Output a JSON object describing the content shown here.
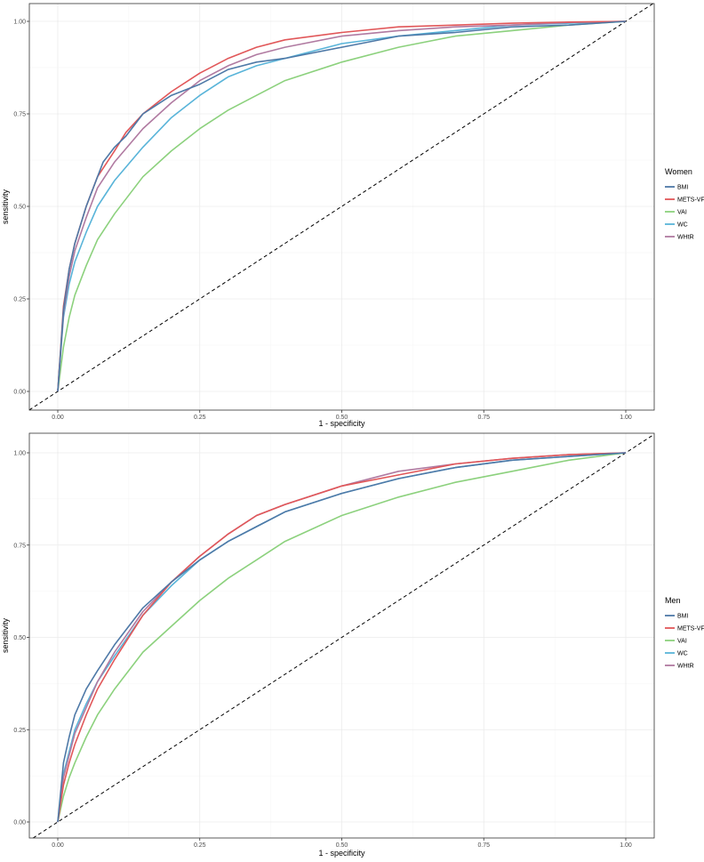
{
  "colors": {
    "BMI": "#4E79A7",
    "METS-VF": "#E15759",
    "VAI": "#8CD17D",
    "WC": "#59B4D9",
    "WHtR": "#B07AA1"
  },
  "chart_data": [
    {
      "type": "line",
      "xlabel": "1 - specificity",
      "ylabel": "sensitivity",
      "xlim": [
        0,
        1
      ],
      "ylim": [
        0,
        1
      ],
      "x_ticks": [
        "0.00",
        "0.25",
        "0.50",
        "0.75",
        "1.00"
      ],
      "y_ticks": [
        "0.00",
        "0.25",
        "0.50",
        "0.75",
        "1.00"
      ],
      "grid": true,
      "legend_title": "Women",
      "legend_position": "right",
      "reference_line": "dashed diagonal",
      "series": [
        {
          "name": "BMI",
          "x": [
            0,
            0.01,
            0.02,
            0.03,
            0.05,
            0.07,
            0.08,
            0.1,
            0.12,
            0.15,
            0.2,
            0.25,
            0.3,
            0.35,
            0.4,
            0.5,
            0.6,
            0.7,
            0.8,
            0.9,
            1.0
          ],
          "y": [
            0,
            0.22,
            0.33,
            0.4,
            0.5,
            0.58,
            0.62,
            0.66,
            0.69,
            0.75,
            0.8,
            0.83,
            0.87,
            0.89,
            0.9,
            0.93,
            0.96,
            0.97,
            0.985,
            0.99,
            1.0
          ]
        },
        {
          "name": "METS-VF",
          "x": [
            0,
            0.01,
            0.02,
            0.03,
            0.05,
            0.07,
            0.1,
            0.12,
            0.15,
            0.2,
            0.25,
            0.3,
            0.35,
            0.4,
            0.5,
            0.6,
            0.7,
            0.8,
            0.9,
            1.0
          ],
          "y": [
            0,
            0.23,
            0.33,
            0.4,
            0.5,
            0.58,
            0.65,
            0.7,
            0.75,
            0.81,
            0.86,
            0.9,
            0.93,
            0.95,
            0.97,
            0.985,
            0.99,
            0.995,
            0.998,
            1.0
          ]
        },
        {
          "name": "VAI",
          "x": [
            0,
            0.01,
            0.02,
            0.03,
            0.05,
            0.07,
            0.1,
            0.15,
            0.2,
            0.25,
            0.3,
            0.35,
            0.4,
            0.5,
            0.6,
            0.7,
            0.8,
            0.9,
            1.0
          ],
          "y": [
            0,
            0.12,
            0.2,
            0.26,
            0.34,
            0.41,
            0.48,
            0.58,
            0.65,
            0.71,
            0.76,
            0.8,
            0.84,
            0.89,
            0.93,
            0.96,
            0.975,
            0.99,
            1.0
          ]
        },
        {
          "name": "WC",
          "x": [
            0,
            0.01,
            0.02,
            0.03,
            0.05,
            0.07,
            0.1,
            0.15,
            0.2,
            0.25,
            0.3,
            0.35,
            0.4,
            0.5,
            0.6,
            0.7,
            0.8,
            0.9,
            1.0
          ],
          "y": [
            0,
            0.2,
            0.29,
            0.35,
            0.43,
            0.5,
            0.57,
            0.66,
            0.74,
            0.8,
            0.85,
            0.88,
            0.9,
            0.94,
            0.96,
            0.975,
            0.99,
            0.995,
            1.0
          ]
        },
        {
          "name": "WHtR",
          "x": [
            0,
            0.01,
            0.02,
            0.03,
            0.05,
            0.07,
            0.1,
            0.15,
            0.2,
            0.25,
            0.3,
            0.35,
            0.4,
            0.5,
            0.6,
            0.7,
            0.8,
            0.9,
            1.0
          ],
          "y": [
            0,
            0.21,
            0.31,
            0.38,
            0.47,
            0.55,
            0.62,
            0.71,
            0.78,
            0.84,
            0.88,
            0.91,
            0.93,
            0.96,
            0.975,
            0.985,
            0.99,
            0.997,
            1.0
          ]
        }
      ]
    },
    {
      "type": "line",
      "xlabel": "1 - specificity",
      "ylabel": "sensitivity",
      "xlim": [
        0,
        1
      ],
      "ylim": [
        0,
        1
      ],
      "x_ticks": [
        "0.00",
        "0.25",
        "0.50",
        "0.75",
        "1.00"
      ],
      "y_ticks": [
        "0.00",
        "0.25",
        "0.50",
        "0.75",
        "1.00"
      ],
      "grid": true,
      "legend_title": "Men",
      "legend_position": "right",
      "reference_line": "dashed diagonal",
      "series": [
        {
          "name": "BMI",
          "x": [
            0,
            0.01,
            0.02,
            0.03,
            0.05,
            0.07,
            0.1,
            0.15,
            0.2,
            0.25,
            0.3,
            0.35,
            0.4,
            0.5,
            0.6,
            0.7,
            0.8,
            0.9,
            1.0
          ],
          "y": [
            0,
            0.16,
            0.23,
            0.29,
            0.36,
            0.41,
            0.48,
            0.58,
            0.65,
            0.71,
            0.76,
            0.8,
            0.84,
            0.89,
            0.93,
            0.96,
            0.98,
            0.99,
            1.0
          ]
        },
        {
          "name": "METS-VF",
          "x": [
            0,
            0.01,
            0.02,
            0.03,
            0.05,
            0.07,
            0.1,
            0.15,
            0.2,
            0.25,
            0.3,
            0.35,
            0.4,
            0.5,
            0.6,
            0.7,
            0.8,
            0.9,
            1.0
          ],
          "y": [
            0,
            0.1,
            0.16,
            0.21,
            0.29,
            0.36,
            0.44,
            0.56,
            0.65,
            0.72,
            0.78,
            0.83,
            0.86,
            0.91,
            0.94,
            0.97,
            0.985,
            0.995,
            1.0
          ]
        },
        {
          "name": "VAI",
          "x": [
            0,
            0.01,
            0.02,
            0.03,
            0.05,
            0.07,
            0.1,
            0.15,
            0.2,
            0.25,
            0.3,
            0.35,
            0.4,
            0.5,
            0.6,
            0.7,
            0.8,
            0.9,
            1.0
          ],
          "y": [
            0,
            0.07,
            0.12,
            0.16,
            0.23,
            0.29,
            0.36,
            0.46,
            0.53,
            0.6,
            0.66,
            0.71,
            0.76,
            0.83,
            0.88,
            0.92,
            0.95,
            0.98,
            1.0
          ]
        },
        {
          "name": "WC",
          "x": [
            0,
            0.01,
            0.02,
            0.03,
            0.05,
            0.07,
            0.1,
            0.15,
            0.2,
            0.25,
            0.3,
            0.35,
            0.4,
            0.5,
            0.6,
            0.7,
            0.8,
            0.9,
            1.0
          ],
          "y": [
            0,
            0.13,
            0.19,
            0.25,
            0.32,
            0.38,
            0.45,
            0.56,
            0.64,
            0.71,
            0.76,
            0.8,
            0.84,
            0.89,
            0.93,
            0.96,
            0.98,
            0.99,
            1.0
          ]
        },
        {
          "name": "WHtR",
          "x": [
            0,
            0.01,
            0.02,
            0.03,
            0.05,
            0.07,
            0.1,
            0.15,
            0.2,
            0.25,
            0.3,
            0.35,
            0.4,
            0.5,
            0.6,
            0.7,
            0.8,
            0.9,
            1.0
          ],
          "y": [
            0,
            0.12,
            0.18,
            0.24,
            0.31,
            0.38,
            0.46,
            0.57,
            0.65,
            0.72,
            0.78,
            0.83,
            0.86,
            0.91,
            0.95,
            0.97,
            0.985,
            0.995,
            1.0
          ]
        }
      ]
    }
  ]
}
